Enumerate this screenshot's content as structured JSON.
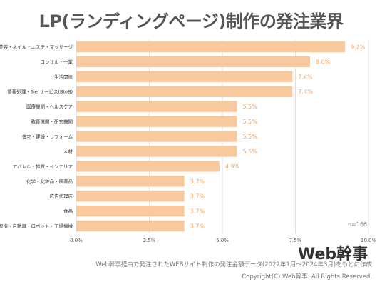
{
  "chart_data": {
    "type": "bar",
    "orientation": "horizontal",
    "title": "LP(ランディングページ)制作の発注業界",
    "categories": [
      "美容・ネイル・エステ・マッサージ",
      "コンサル・士業",
      "生活関連",
      "情報処理・Sierサービス(BtoB)",
      "医療機関・ヘルスケア",
      "教育機関・研究機関",
      "住宅・建設・リフォーム",
      "人材",
      "アパレル・雑貨・インテリア",
      "化学・化粧品・医薬品",
      "広告代理店",
      "食品",
      "製造・自動車・ロボット・工場機械"
    ],
    "values": [
      9.2,
      8.0,
      7.4,
      7.4,
      5.5,
      5.5,
      5.5,
      5.5,
      4.9,
      3.7,
      3.7,
      3.7,
      3.7
    ],
    "value_labels": [
      "9.2%",
      "8.0%",
      "7.4%",
      "7.4%",
      "5.5%",
      "5.5%",
      "5.5%",
      "5.5%",
      "4.9%",
      "3.7%",
      "3.7%",
      "3.7%",
      "3.7%"
    ],
    "xticks": [
      0,
      2.5,
      5,
      7.5,
      10
    ],
    "xtick_labels": [
      "0.0%",
      "2.5%",
      "5.0%",
      "7.5%",
      "10.0%"
    ],
    "xlim": [
      0,
      10
    ],
    "annotation": "n=166",
    "grid": "vertical",
    "colors": {
      "bar": "#f9c99e",
      "value_label": "#f0a35e",
      "grid": "#dddddd",
      "title": "#555555"
    }
  },
  "logo_text": "Web幹事",
  "footnote": "Web幹事経由で発注されたWEBサイト制作の発注金額データ(2022年1月〜2024年3月)をもとに作成",
  "copyright": "Copyright(C) Web幹事. All Rights Reserved."
}
